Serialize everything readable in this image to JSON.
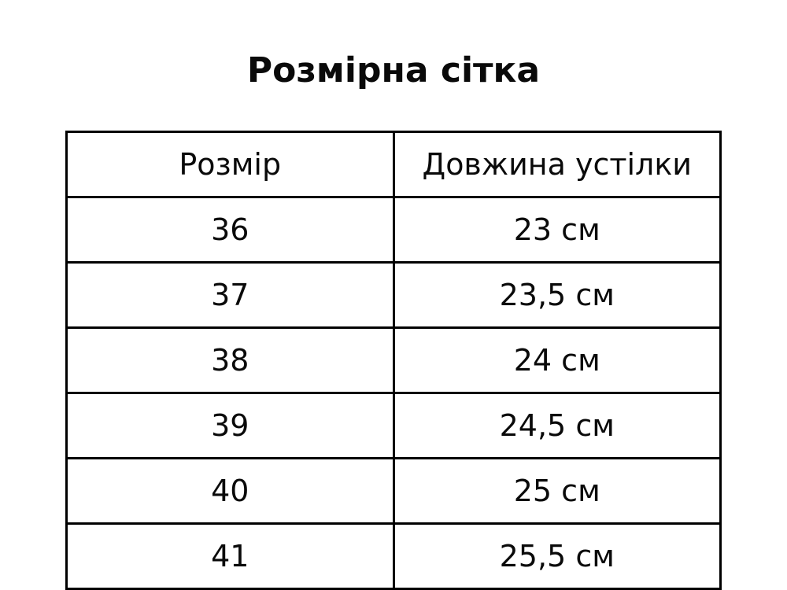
{
  "title": "Розмірна сітка",
  "table": {
    "headers": [
      "Розмір",
      "Довжина устілки"
    ],
    "rows": [
      {
        "size": "36",
        "length": "23 см"
      },
      {
        "size": "37",
        "length": "23,5 см"
      },
      {
        "size": "38",
        "length": "24 см"
      },
      {
        "size": "39",
        "length": "24,5 см"
      },
      {
        "size": "40",
        "length": "25 см"
      },
      {
        "size": "41",
        "length": "25,5 см"
      }
    ]
  }
}
